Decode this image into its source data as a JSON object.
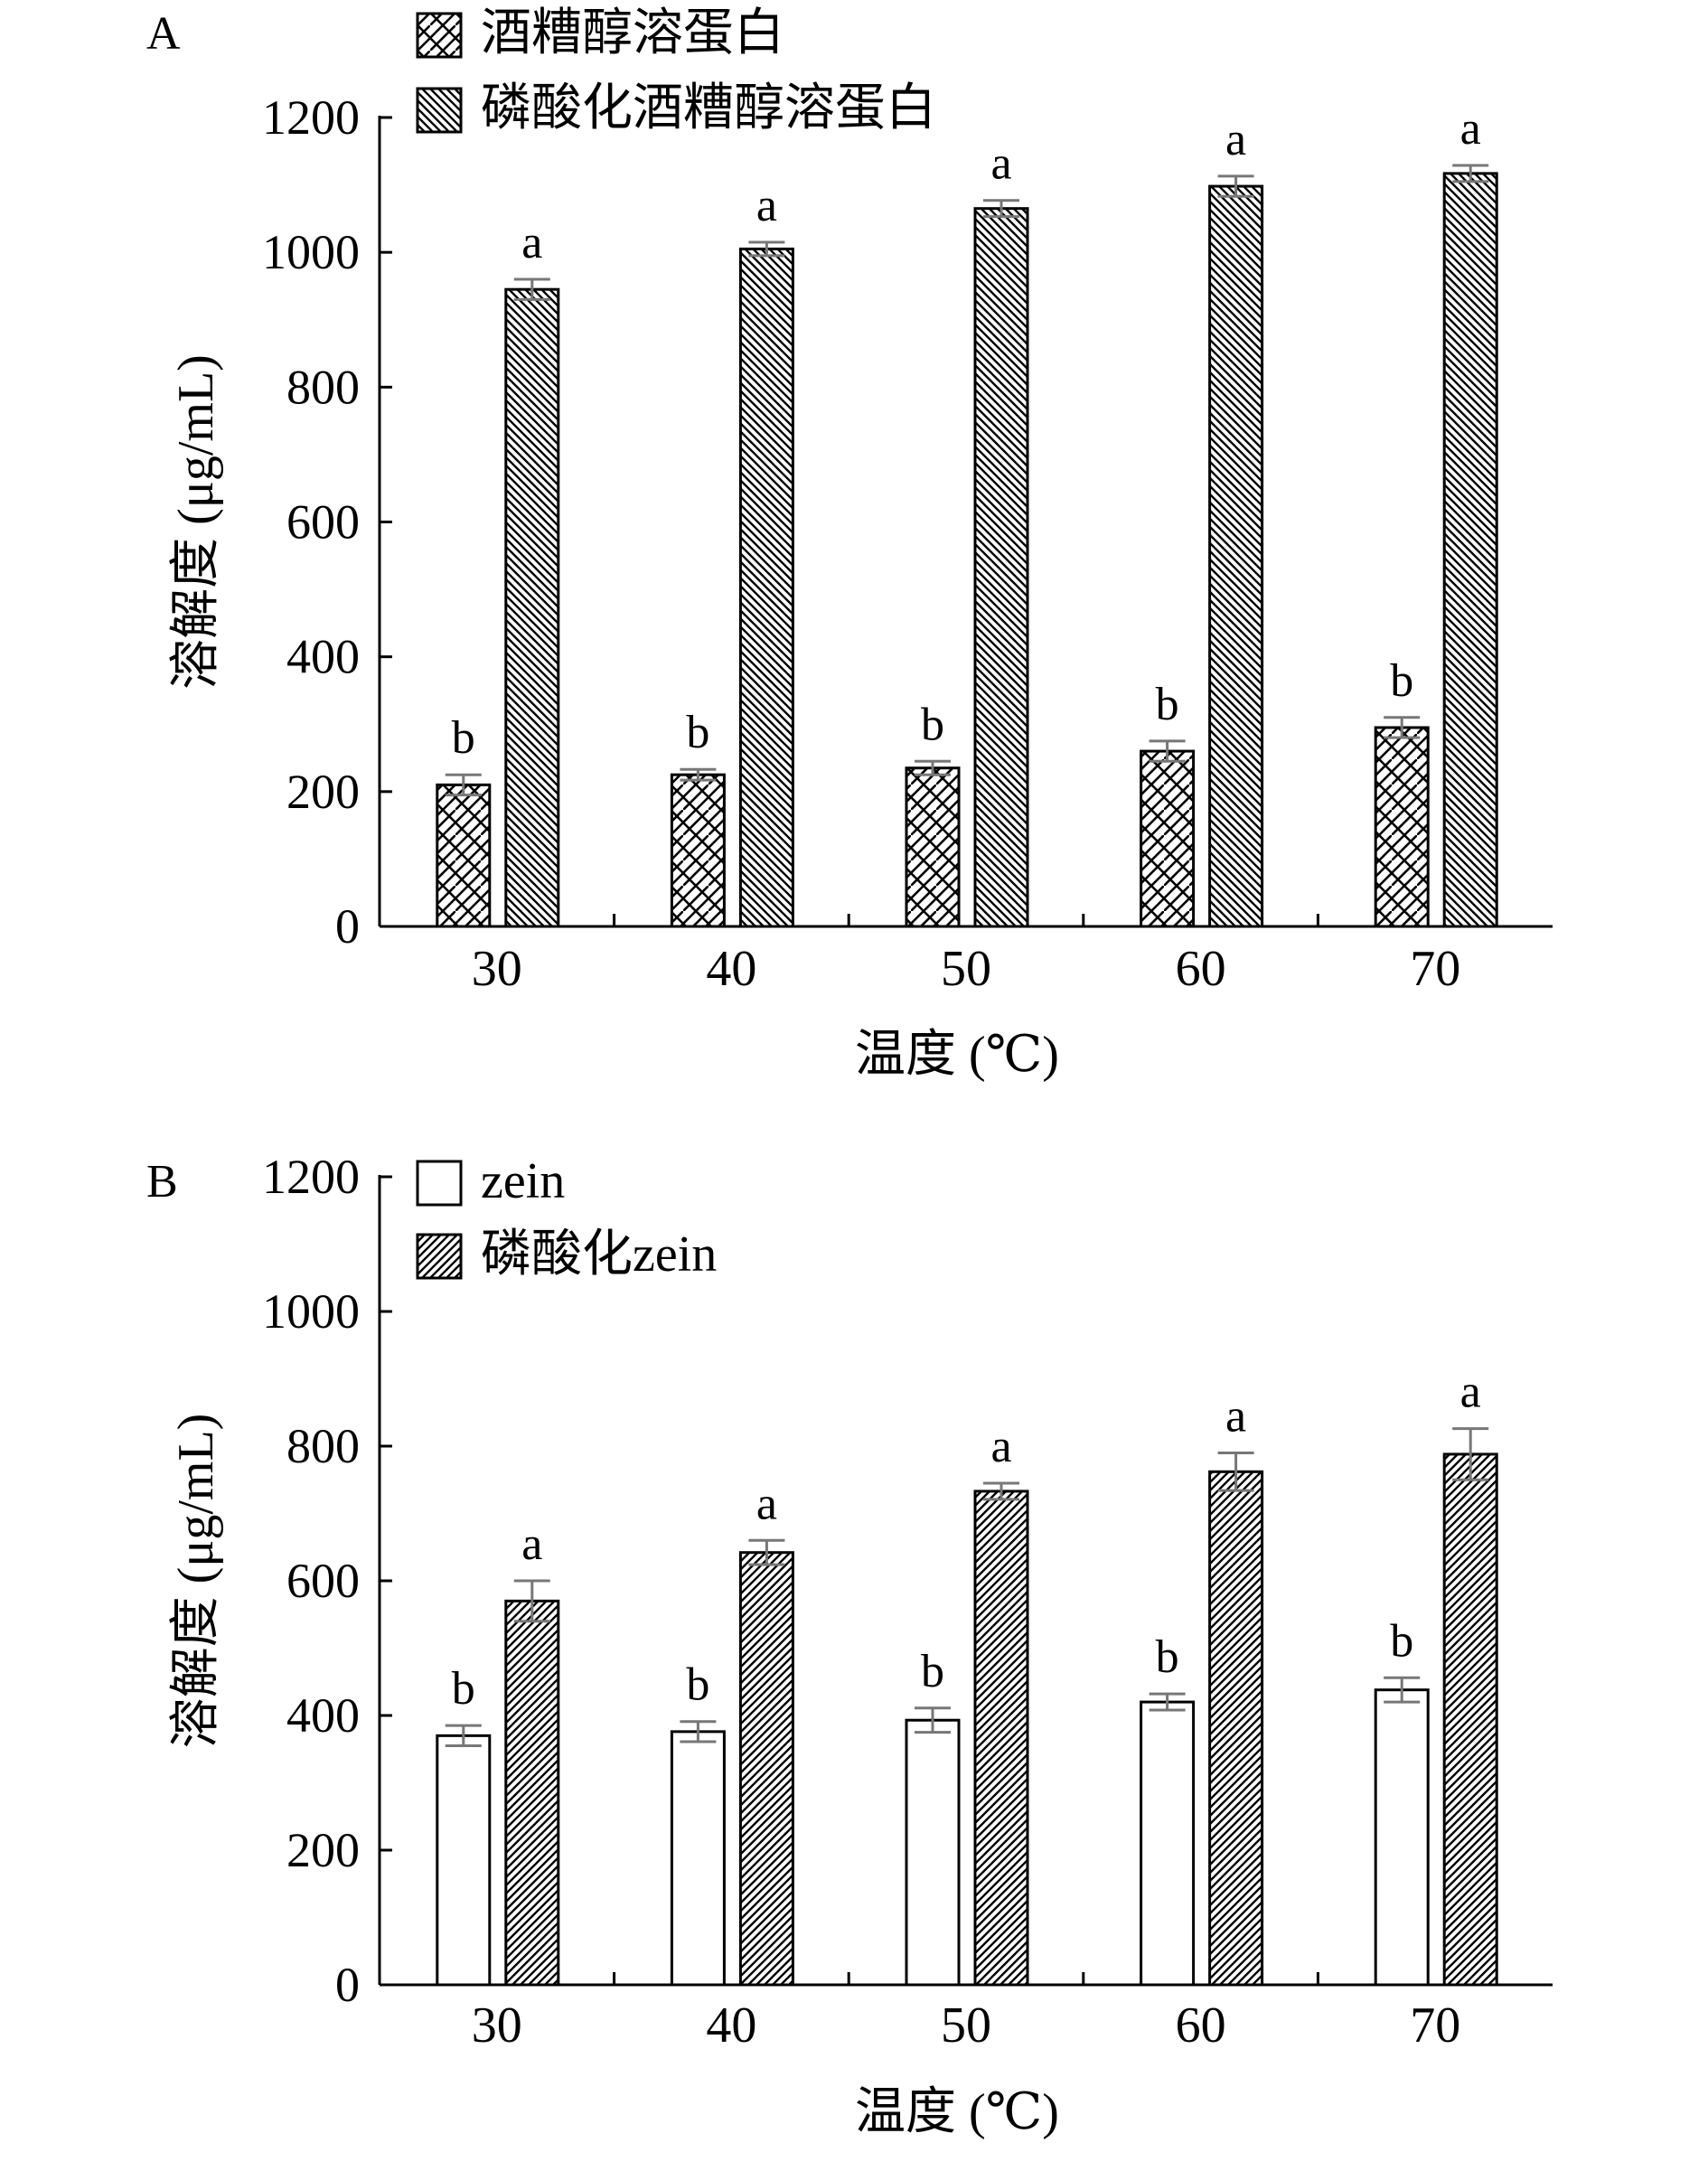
{
  "chart_data": [
    {
      "type": "bar",
      "panel_label": "A",
      "xlabel": "温度 (℃)",
      "ylabel": "溶解度 (μg/mL)",
      "ylim": [
        0,
        1200
      ],
      "yticks": [
        "0",
        "200",
        "400",
        "600",
        "800",
        "1000",
        "1200"
      ],
      "categories": [
        "30",
        "40",
        "50",
        "60",
        "70"
      ],
      "legend_position": "top-left",
      "grid": false,
      "series": [
        {
          "name": "酒糟醇溶蛋白",
          "pattern": "zigzag",
          "values": [
            210,
            225,
            235,
            260,
            295
          ],
          "errors": [
            15,
            8,
            10,
            15,
            15
          ],
          "sig_labels": [
            "b",
            "b",
            "b",
            "b",
            "b"
          ]
        },
        {
          "name": "磷酸化酒糟醇溶蛋白",
          "pattern": "dense-backslash",
          "values": [
            945,
            1005,
            1065,
            1098,
            1117
          ],
          "errors": [
            15,
            10,
            12,
            15,
            12
          ],
          "sig_labels": [
            "a",
            "a",
            "a",
            "a",
            "a"
          ]
        }
      ]
    },
    {
      "type": "bar",
      "panel_label": "B",
      "xlabel": "温度 (℃)",
      "ylabel": "溶解度 (μg/mL)",
      "ylim": [
        0,
        1200
      ],
      "yticks": [
        "0",
        "200",
        "400",
        "600",
        "800",
        "1000",
        "1200"
      ],
      "categories": [
        "30",
        "40",
        "50",
        "60",
        "70"
      ],
      "legend_position": "top-left",
      "grid": false,
      "series": [
        {
          "name": "zein",
          "pattern": "none",
          "values": [
            370,
            376,
            393,
            420,
            438
          ],
          "errors": [
            15,
            15,
            18,
            12,
            18
          ],
          "sig_labels": [
            "b",
            "b",
            "b",
            "b",
            "b"
          ]
        },
        {
          "name": "磷酸化zein",
          "pattern": "forward-slash",
          "values": [
            570,
            642,
            733,
            762,
            788
          ],
          "errors": [
            30,
            18,
            12,
            28,
            38
          ],
          "sig_labels": [
            "a",
            "a",
            "a",
            "a",
            "a"
          ]
        }
      ]
    }
  ]
}
